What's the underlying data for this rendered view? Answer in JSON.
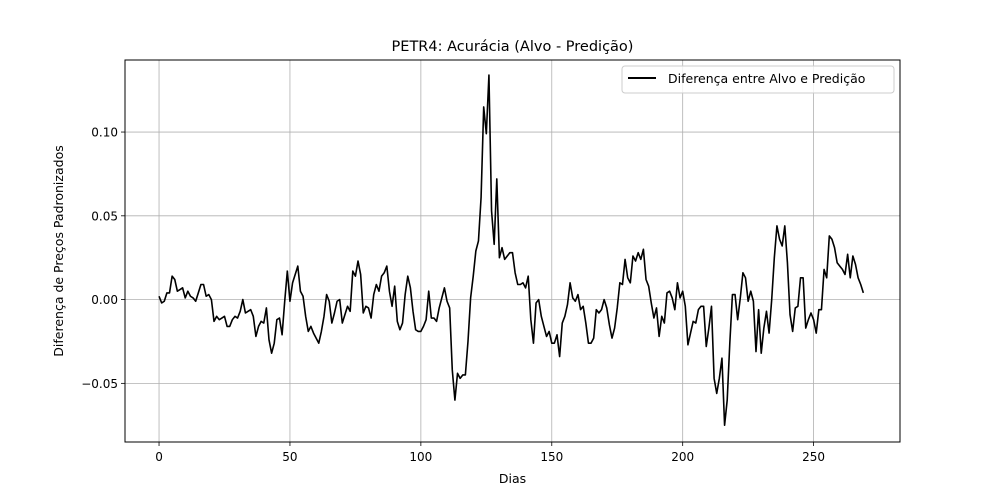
{
  "chart_data": {
    "type": "line",
    "title": "PETR4: Acurácia (Alvo - Predição)",
    "xlabel": "Dias",
    "ylabel": "Diferença de Preços Padronizados",
    "xlim": [
      -13,
      283
    ],
    "ylim": [
      -0.085,
      0.143
    ],
    "x_ticks": [
      0,
      50,
      100,
      150,
      200,
      250
    ],
    "x_tick_labels": [
      "0",
      "50",
      "100",
      "150",
      "200",
      "250"
    ],
    "y_ticks": [
      -0.05,
      0.0,
      0.05,
      0.1
    ],
    "y_tick_labels": [
      "−0.05",
      "0.00",
      "0.05",
      "0.10"
    ],
    "grid": true,
    "legend_position": "top-right",
    "series": [
      {
        "name": "Diferença entre Alvo e Predição",
        "color": "#000000",
        "keypoints": [
          [
            0,
            0.002
          ],
          [
            1,
            -0.002
          ],
          [
            2,
            -0.001
          ],
          [
            3,
            0.004
          ],
          [
            4,
            0.004
          ],
          [
            5,
            0.014
          ],
          [
            6,
            0.012
          ],
          [
            7,
            0.005
          ],
          [
            8,
            0.006
          ],
          [
            9,
            0.007
          ],
          [
            10,
            0.001
          ],
          [
            11,
            0.005
          ],
          [
            12,
            0.002
          ],
          [
            13,
            0.001
          ],
          [
            14,
            -0.001
          ],
          [
            15,
            0.004
          ],
          [
            16,
            0.009
          ],
          [
            17,
            0.009
          ],
          [
            18,
            0.002
          ],
          [
            19,
            0.003
          ],
          [
            20,
            0.0
          ],
          [
            21,
            -0.013
          ],
          [
            22,
            -0.01
          ],
          [
            23,
            -0.012
          ],
          [
            24,
            -0.011
          ],
          [
            25,
            -0.01
          ],
          [
            26,
            -0.016
          ],
          [
            27,
            -0.016
          ],
          [
            28,
            -0.012
          ],
          [
            29,
            -0.01
          ],
          [
            30,
            -0.011
          ],
          [
            31,
            -0.007
          ],
          [
            32,
            0.0
          ],
          [
            33,
            -0.008
          ],
          [
            34,
            -0.007
          ],
          [
            35,
            -0.006
          ],
          [
            36,
            -0.01
          ],
          [
            37,
            -0.022
          ],
          [
            38,
            -0.016
          ],
          [
            39,
            -0.013
          ],
          [
            40,
            -0.014
          ],
          [
            41,
            -0.005
          ],
          [
            42,
            -0.024
          ],
          [
            43,
            -0.032
          ],
          [
            44,
            -0.026
          ],
          [
            45,
            -0.012
          ],
          [
            46,
            -0.011
          ],
          [
            47,
            -0.021
          ],
          [
            48,
            -0.001
          ],
          [
            49,
            0.017
          ],
          [
            50,
            -0.001
          ],
          [
            51,
            0.01
          ],
          [
            52,
            0.015
          ],
          [
            53,
            0.02
          ],
          [
            54,
            0.005
          ],
          [
            55,
            0.002
          ],
          [
            56,
            -0.01
          ],
          [
            57,
            -0.019
          ],
          [
            58,
            -0.016
          ],
          [
            59,
            -0.02
          ],
          [
            60,
            -0.023
          ],
          [
            61,
            -0.026
          ],
          [
            62,
            -0.019
          ],
          [
            63,
            -0.01
          ],
          [
            64,
            0.003
          ],
          [
            65,
            -0.001
          ],
          [
            66,
            -0.014
          ],
          [
            67,
            -0.008
          ],
          [
            68,
            -0.001
          ],
          [
            69,
            0.0
          ],
          [
            70,
            -0.014
          ],
          [
            71,
            -0.009
          ],
          [
            72,
            -0.004
          ],
          [
            73,
            -0.007
          ],
          [
            74,
            0.017
          ],
          [
            75,
            0.014
          ],
          [
            76,
            0.023
          ],
          [
            77,
            0.015
          ],
          [
            78,
            -0.008
          ],
          [
            79,
            -0.004
          ],
          [
            80,
            -0.005
          ],
          [
            81,
            -0.011
          ],
          [
            82,
            0.003
          ],
          [
            83,
            0.009
          ],
          [
            84,
            0.005
          ],
          [
            85,
            0.014
          ],
          [
            86,
            0.016
          ],
          [
            87,
            0.02
          ],
          [
            88,
            0.005
          ],
          [
            89,
            -0.004
          ],
          [
            90,
            0.008
          ],
          [
            91,
            -0.013
          ],
          [
            92,
            -0.018
          ],
          [
            93,
            -0.014
          ],
          [
            94,
            0.003
          ],
          [
            95,
            0.014
          ],
          [
            96,
            0.007
          ],
          [
            97,
            -0.007
          ],
          [
            98,
            -0.018
          ],
          [
            99,
            -0.019
          ],
          [
            100,
            -0.019
          ],
          [
            101,
            -0.016
          ],
          [
            102,
            -0.012
          ],
          [
            103,
            0.005
          ],
          [
            104,
            -0.011
          ],
          [
            105,
            -0.011
          ],
          [
            106,
            -0.013
          ],
          [
            107,
            -0.005
          ],
          [
            108,
            0.001
          ],
          [
            109,
            0.007
          ],
          [
            110,
            -0.001
          ],
          [
            111,
            -0.005
          ],
          [
            112,
            -0.042
          ],
          [
            113,
            -0.06
          ],
          [
            114,
            -0.044
          ],
          [
            115,
            -0.047
          ],
          [
            116,
            -0.045
          ],
          [
            117,
            -0.045
          ],
          [
            118,
            -0.025
          ],
          [
            119,
            0.001
          ],
          [
            120,
            0.014
          ],
          [
            121,
            0.029
          ],
          [
            122,
            0.035
          ],
          [
            123,
            0.061
          ],
          [
            124,
            0.115
          ],
          [
            125,
            0.099
          ],
          [
            126,
            0.134
          ],
          [
            127,
            0.053
          ],
          [
            128,
            0.033
          ],
          [
            129,
            0.072
          ],
          [
            130,
            0.025
          ],
          [
            131,
            0.031
          ],
          [
            132,
            0.024
          ],
          [
            133,
            0.026
          ],
          [
            134,
            0.028
          ],
          [
            135,
            0.028
          ],
          [
            136,
            0.016
          ],
          [
            137,
            0.009
          ],
          [
            138,
            0.009
          ],
          [
            139,
            0.01
          ],
          [
            140,
            0.007
          ],
          [
            141,
            0.014
          ],
          [
            142,
            -0.012
          ],
          [
            143,
            -0.026
          ],
          [
            144,
            -0.002
          ],
          [
            145,
            0.0
          ],
          [
            146,
            -0.01
          ],
          [
            147,
            -0.016
          ],
          [
            148,
            -0.022
          ],
          [
            149,
            -0.019
          ],
          [
            150,
            -0.026
          ],
          [
            151,
            -0.026
          ],
          [
            152,
            -0.021
          ],
          [
            153,
            -0.034
          ],
          [
            154,
            -0.014
          ],
          [
            155,
            -0.01
          ],
          [
            156,
            -0.003
          ],
          [
            157,
            0.01
          ],
          [
            158,
            0.001
          ],
          [
            159,
            -0.001
          ],
          [
            160,
            0.003
          ],
          [
            161,
            -0.006
          ],
          [
            162,
            -0.004
          ],
          [
            163,
            -0.014
          ],
          [
            164,
            -0.026
          ],
          [
            165,
            -0.026
          ],
          [
            166,
            -0.023
          ],
          [
            167,
            -0.006
          ],
          [
            168,
            -0.008
          ],
          [
            169,
            -0.006
          ],
          [
            170,
            0.0
          ],
          [
            171,
            -0.005
          ],
          [
            172,
            -0.015
          ],
          [
            173,
            -0.023
          ],
          [
            174,
            -0.017
          ],
          [
            175,
            -0.005
          ],
          [
            176,
            0.01
          ],
          [
            177,
            0.009
          ],
          [
            178,
            0.024
          ],
          [
            179,
            0.013
          ],
          [
            180,
            0.01
          ],
          [
            181,
            0.026
          ],
          [
            182,
            0.023
          ],
          [
            183,
            0.028
          ],
          [
            184,
            0.024
          ],
          [
            185,
            0.03
          ],
          [
            186,
            0.012
          ],
          [
            187,
            0.008
          ],
          [
            188,
            -0.002
          ],
          [
            189,
            -0.011
          ],
          [
            190,
            -0.005
          ],
          [
            191,
            -0.022
          ],
          [
            192,
            -0.01
          ],
          [
            193,
            -0.014
          ],
          [
            194,
            0.004
          ],
          [
            195,
            0.005
          ],
          [
            196,
            0.001
          ],
          [
            197,
            -0.006
          ],
          [
            198,
            0.01
          ],
          [
            199,
            0.001
          ],
          [
            200,
            0.005
          ],
          [
            201,
            -0.004
          ],
          [
            202,
            -0.027
          ],
          [
            203,
            -0.02
          ],
          [
            204,
            -0.013
          ],
          [
            205,
            -0.014
          ],
          [
            206,
            -0.006
          ],
          [
            207,
            -0.004
          ],
          [
            208,
            -0.004
          ],
          [
            209,
            -0.028
          ],
          [
            210,
            -0.017
          ],
          [
            211,
            -0.004
          ],
          [
            212,
            -0.047
          ],
          [
            213,
            -0.056
          ],
          [
            214,
            -0.047
          ],
          [
            215,
            -0.035
          ],
          [
            216,
            -0.075
          ],
          [
            217,
            -0.06
          ],
          [
            218,
            -0.026
          ],
          [
            219,
            0.003
          ],
          [
            220,
            0.003
          ],
          [
            221,
            -0.012
          ],
          [
            222,
            0.001
          ],
          [
            223,
            0.016
          ],
          [
            224,
            0.013
          ],
          [
            225,
            -0.001
          ],
          [
            226,
            0.005
          ],
          [
            227,
            -0.001
          ],
          [
            228,
            -0.031
          ],
          [
            229,
            -0.006
          ],
          [
            230,
            -0.032
          ],
          [
            231,
            -0.017
          ],
          [
            232,
            -0.007
          ],
          [
            233,
            -0.02
          ],
          [
            234,
            0.0
          ],
          [
            235,
            0.025
          ],
          [
            236,
            0.044
          ],
          [
            237,
            0.036
          ],
          [
            238,
            0.032
          ],
          [
            239,
            0.044
          ],
          [
            240,
            0.022
          ],
          [
            241,
            -0.009
          ],
          [
            242,
            -0.019
          ],
          [
            243,
            -0.005
          ],
          [
            244,
            -0.004
          ],
          [
            245,
            0.013
          ],
          [
            246,
            0.013
          ],
          [
            247,
            -0.017
          ],
          [
            248,
            -0.012
          ],
          [
            249,
            -0.008
          ],
          [
            250,
            -0.012
          ],
          [
            251,
            -0.02
          ],
          [
            252,
            -0.006
          ],
          [
            253,
            -0.006
          ],
          [
            254,
            0.018
          ],
          [
            255,
            0.013
          ],
          [
            256,
            0.038
          ],
          [
            257,
            0.036
          ],
          [
            258,
            0.031
          ],
          [
            259,
            0.022
          ],
          [
            260,
            0.02
          ],
          [
            261,
            0.018
          ],
          [
            262,
            0.015
          ],
          [
            263,
            0.027
          ],
          [
            264,
            0.013
          ],
          [
            265,
            0.026
          ],
          [
            266,
            0.021
          ],
          [
            267,
            0.013
          ],
          [
            268,
            0.009
          ],
          [
            269,
            0.004
          ]
        ]
      }
    ]
  }
}
